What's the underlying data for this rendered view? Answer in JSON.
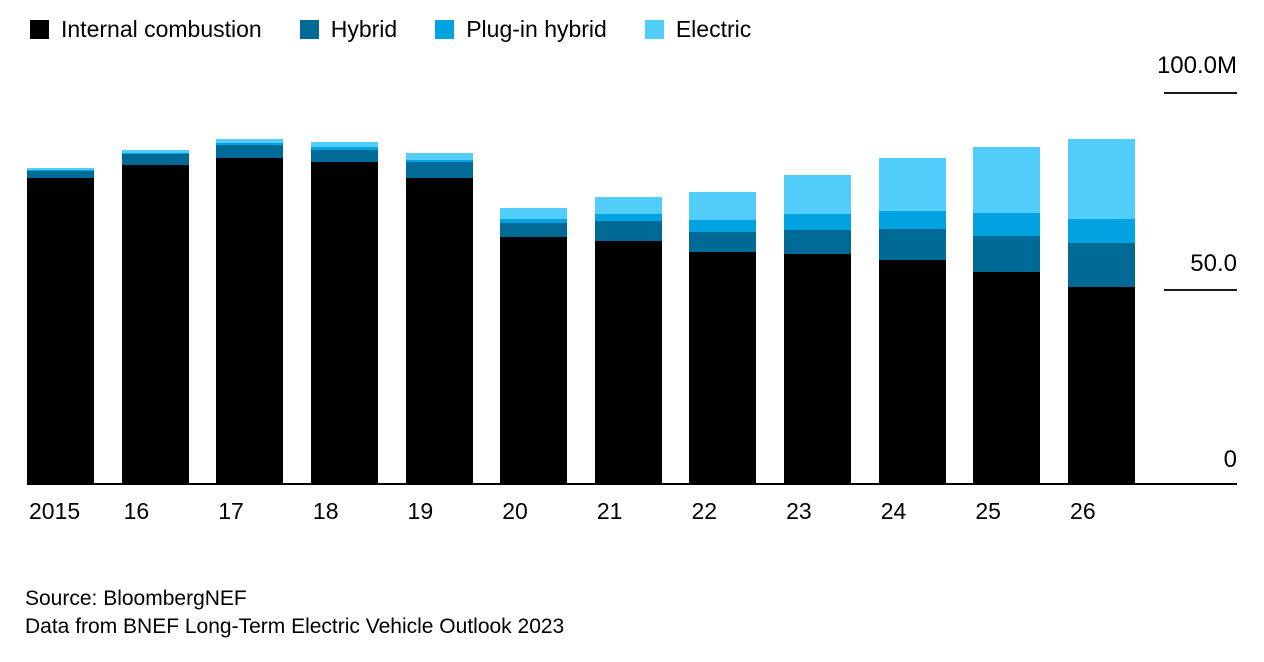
{
  "legend": [
    {
      "label": "Internal combustion",
      "color": "#000000"
    },
    {
      "label": "Hybrid",
      "color": "#006a96"
    },
    {
      "label": "Plug-in hybrid",
      "color": "#00a3e0"
    },
    {
      "label": "Electric",
      "color": "#52ccf9"
    }
  ],
  "y_axis": {
    "ticks": [
      {
        "label": "100.0M",
        "value": 100
      },
      {
        "label": "50.0",
        "value": 50
      },
      {
        "label": "0",
        "value": 0
      }
    ]
  },
  "source": {
    "line1": "Source: BloombergNEF",
    "line2": "Data from BNEF Long-Term Electric Vehicle Outlook 2023"
  },
  "chart_data": {
    "type": "bar",
    "stacked": true,
    "unit": "M vehicles",
    "title": "",
    "xlabel": "",
    "ylabel": "",
    "ylim": [
      0,
      100
    ],
    "grid": false,
    "legend_position": "top-left",
    "categories": [
      "2015",
      "16",
      "17",
      "18",
      "19",
      "20",
      "21",
      "22",
      "23",
      "24",
      "25",
      "26"
    ],
    "series": [
      {
        "name": "Internal combustion",
        "color": "#000000",
        "values": [
          78.0,
          81.3,
          83.0,
          82.0,
          78.0,
          63.0,
          62.0,
          59.0,
          58.5,
          57.0,
          54.0,
          50.0
        ]
      },
      {
        "name": "Hybrid",
        "color": "#006a96",
        "values": [
          1.8,
          2.8,
          3.5,
          3.1,
          4.1,
          3.6,
          4.9,
          5.1,
          6.1,
          7.9,
          9.2,
          11.3
        ]
      },
      {
        "name": "Plug-in hybrid",
        "color": "#00a3e0",
        "values": [
          0.2,
          0.3,
          0.5,
          0.8,
          0.5,
          1.0,
          2.0,
          3.1,
          4.1,
          4.6,
          5.9,
          6.1
        ]
      },
      {
        "name": "Electric",
        "color": "#52ccf9",
        "values": [
          0.5,
          0.8,
          0.9,
          1.3,
          1.8,
          2.8,
          4.3,
          7.2,
          10.2,
          13.6,
          16.9,
          20.7
        ]
      }
    ],
    "totals": [
      80.5,
      85.2,
      87.9,
      87.2,
      84.4,
      70.4,
      73.2,
      74.4,
      78.9,
      83.1,
      86.0,
      88.1
    ]
  }
}
